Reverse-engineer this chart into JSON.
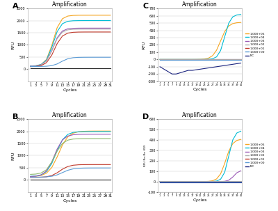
{
  "title": "Amplification",
  "xlabel": "Cycles",
  "ylabel_left": "RFU",
  "ylabel_D": "RFU Rn-Rn (02)",
  "legend_labels": [
    "1.000+05",
    "1.000+04",
    "1.000+03",
    "1.000+02",
    "1.000+01",
    "1.000+00",
    "NC"
  ],
  "colors_A": [
    "#f5a623",
    "#00bcd4",
    "#9b59b6",
    "#b0b0b0",
    "#c0392b",
    "#5b9bd5",
    "#2c2c2c"
  ],
  "colors_B": [
    "#f5a623",
    "#00bcd4",
    "#9b59b6",
    "#8db86e",
    "#c0392b",
    "#5b9bd5",
    "#2c2c2c"
  ],
  "colors_C": [
    "#f5a623",
    "#00bcd4",
    "#9b59b6",
    "#b0b0b0",
    "#c0392b",
    "#5b9bd5",
    "#1a237e"
  ],
  "colors_D": [
    "#f5a623",
    "#00bcd4",
    "#9b59b6",
    "#b0b0b0",
    "#c0392b",
    "#5b9bd5",
    "#1a237e"
  ],
  "panel_labels": [
    "A",
    "B",
    "C",
    "D"
  ],
  "cycles_AB": [
    1,
    3,
    5,
    7,
    9,
    11,
    13,
    15,
    17,
    19,
    21,
    23,
    25,
    27,
    29,
    31
  ],
  "cycles_CD": [
    1,
    3,
    5,
    7,
    9,
    11,
    13,
    15,
    17,
    19,
    21,
    23,
    25,
    27,
    29,
    31,
    33,
    35,
    37,
    39,
    41
  ],
  "ylim_A": [
    -500,
    2500
  ],
  "ylim_B": [
    -500,
    2500
  ],
  "ylim_C": [
    -300,
    700
  ],
  "ylim_D": [
    -100,
    600
  ],
  "yticks_A": [
    0,
    500,
    1000,
    1500,
    2000,
    2500
  ],
  "yticks_B": [
    0,
    500,
    1000,
    1500,
    2000,
    2500
  ],
  "yticks_C": [
    -300,
    -200,
    -100,
    0,
    100,
    200,
    300,
    400,
    500,
    600,
    700
  ],
  "yticks_D": [
    -100,
    0,
    100,
    200,
    300,
    400,
    500,
    600
  ],
  "bg_color": "#ffffff"
}
